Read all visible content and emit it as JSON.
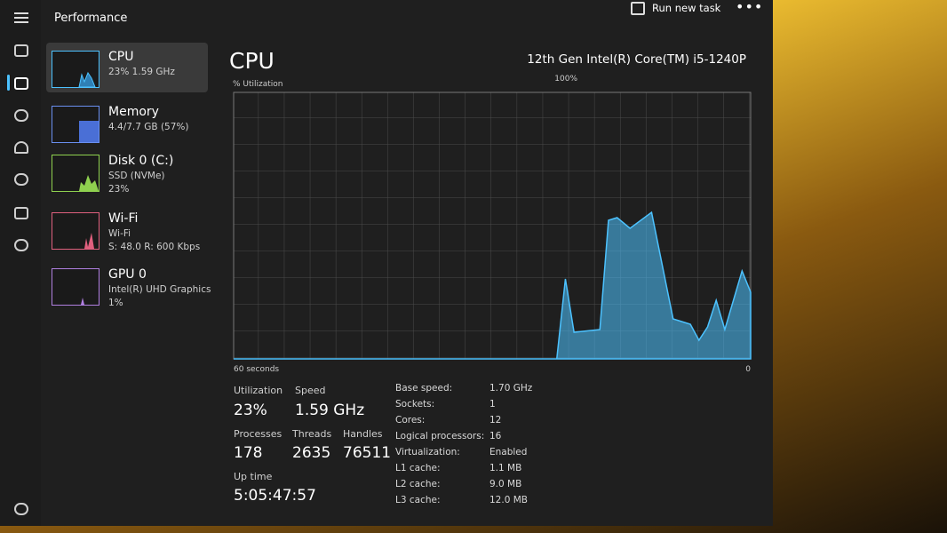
{
  "header": {
    "title": "Performance",
    "run_new_task": "Run new task"
  },
  "sidebar": [
    {
      "name": "CPU",
      "detail": "23% 1.59 GHz"
    },
    {
      "name": "Memory",
      "detail": "4.4/7.7 GB (57%)"
    },
    {
      "name": "Disk 0 (C:)",
      "detail": "SSD (NVMe)",
      "detail2": "23%"
    },
    {
      "name": "Wi-Fi",
      "detail": "Wi-Fi",
      "detail2": "S: 48.0 R: 600 Kbps"
    },
    {
      "name": "GPU 0",
      "detail": "Intel(R) UHD Graphics",
      "detail2": "1%"
    }
  ],
  "panel": {
    "title": "CPU",
    "processor": "12th Gen Intel(R) Core(TM) i5-1240P"
  },
  "chart_data": {
    "type": "area",
    "y_label": "% Utilization",
    "color": "#4cc2ff",
    "x": [
      60,
      22.5,
      21.5,
      20.5,
      17.5,
      16.5,
      15.5,
      14,
      11.5,
      9,
      7,
      6,
      5,
      4,
      3,
      1,
      0
    ],
    "values": [
      0,
      0,
      30,
      10,
      11,
      52,
      53,
      49,
      55,
      15,
      13,
      7,
      12,
      22,
      11,
      33,
      25
    ],
    "xlim": [
      60,
      0
    ],
    "xticks": [
      {
        "value": 60,
        "label": "60 seconds"
      },
      0
    ],
    "ylim": [
      0,
      100
    ],
    "yticks": [
      {
        "value": 100,
        "label": "100%"
      }
    ]
  },
  "stats": {
    "utilization": {
      "label": "Utilization",
      "value": "23%"
    },
    "speed": {
      "label": "Speed",
      "value": "1.59 GHz"
    },
    "processes": {
      "label": "Processes",
      "value": "178"
    },
    "threads": {
      "label": "Threads",
      "value": "2635"
    },
    "handles": {
      "label": "Handles",
      "value": "76511"
    },
    "uptime": {
      "label": "Up time",
      "value": "5:05:47:57"
    }
  },
  "specs": [
    {
      "label": "Base speed:",
      "value": "1.70 GHz"
    },
    {
      "label": "Sockets:",
      "value": "1"
    },
    {
      "label": "Cores:",
      "value": "12"
    },
    {
      "label": "Logical processors:",
      "value": "16"
    },
    {
      "label": "Virtualization:",
      "value": "Enabled"
    },
    {
      "label": "L1 cache:",
      "value": "1.1 MB"
    },
    {
      "label": "L2 cache:",
      "value": "9.0 MB"
    },
    {
      "label": "L3 cache:",
      "value": "12.0 MB"
    }
  ]
}
